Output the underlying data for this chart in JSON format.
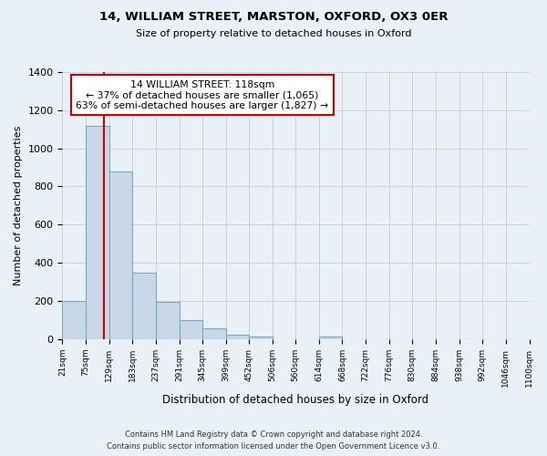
{
  "title": "14, WILLIAM STREET, MARSTON, OXFORD, OX3 0ER",
  "subtitle": "Size of property relative to detached houses in Oxford",
  "xlabel": "Distribution of detached houses by size in Oxford",
  "ylabel": "Number of detached properties",
  "footer_line1": "Contains HM Land Registry data © Crown copyright and database right 2024.",
  "footer_line2": "Contains public sector information licensed under the Open Government Licence v3.0.",
  "bin_labels": [
    "21sqm",
    "75sqm",
    "129sqm",
    "183sqm",
    "237sqm",
    "291sqm",
    "345sqm",
    "399sqm",
    "452sqm",
    "506sqm",
    "560sqm",
    "614sqm",
    "668sqm",
    "722sqm",
    "776sqm",
    "830sqm",
    "884sqm",
    "938sqm",
    "992sqm",
    "1046sqm",
    "1100sqm"
  ],
  "bin_edges": [
    21,
    75,
    129,
    183,
    237,
    291,
    345,
    399,
    452,
    506,
    560,
    614,
    668,
    722,
    776,
    830,
    884,
    938,
    992,
    1046,
    1100
  ],
  "bar_heights": [
    200,
    1120,
    880,
    350,
    195,
    100,
    55,
    22,
    15,
    0,
    0,
    12,
    0,
    0,
    0,
    0,
    0,
    0,
    0,
    0
  ],
  "bar_color": "#c8d8e8",
  "bar_edge_color": "#7aaabf",
  "red_line_x": 118,
  "annotation_title": "14 WILLIAM STREET: 118sqm",
  "annotation_line2": "← 37% of detached houses are smaller (1,065)",
  "annotation_line3": "63% of semi-detached houses are larger (1,827) →",
  "annotation_box_color": "#ffffff",
  "annotation_box_edge": "#cc0000",
  "red_line_color": "#cc0000",
  "ylim": [
    0,
    1400
  ],
  "yticks": [
    0,
    200,
    400,
    600,
    800,
    1000,
    1200,
    1400
  ],
  "grid_color": "#cccccc",
  "background_color": "#eaf0f8",
  "plot_background": "#eaf0f8"
}
